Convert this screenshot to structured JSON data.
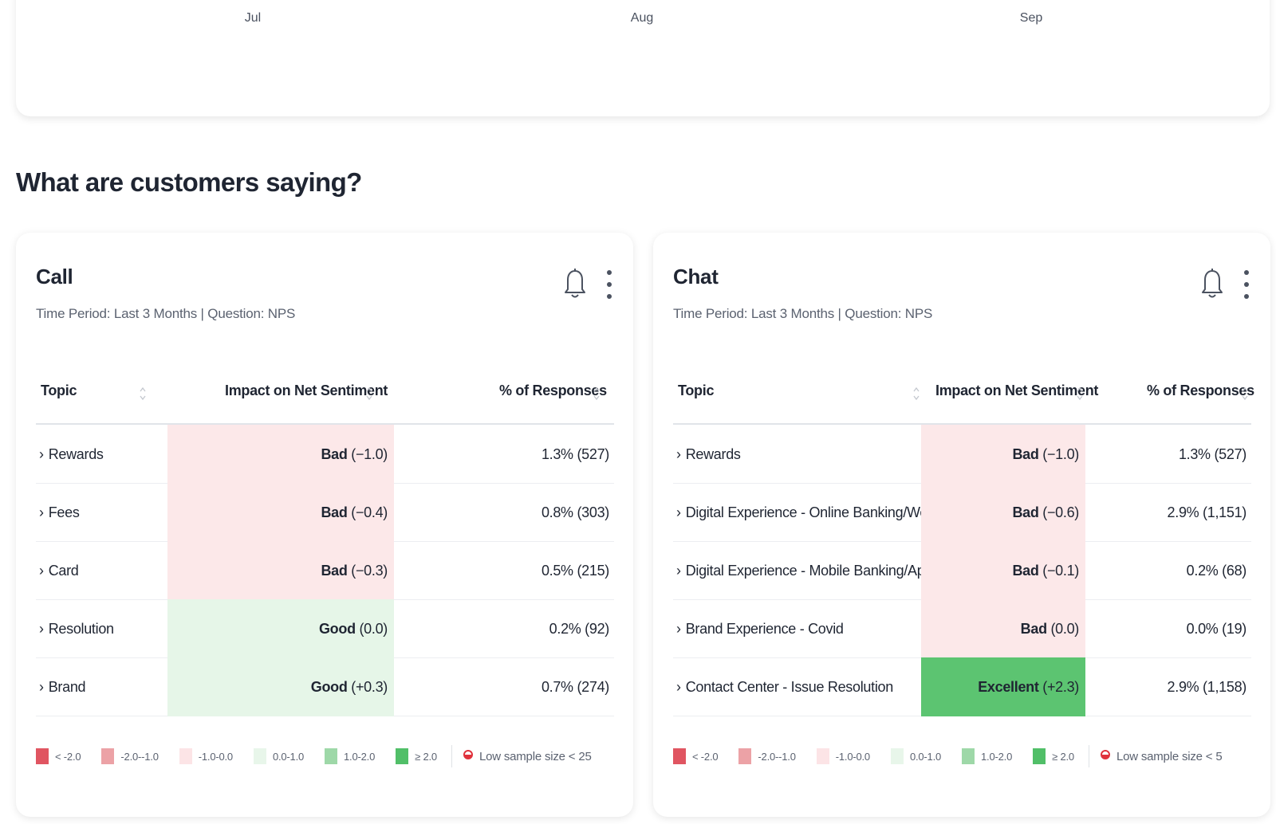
{
  "top_chart": {
    "months": [
      "Jul",
      "Aug",
      "Sep"
    ]
  },
  "section_title": "What are customers saying?",
  "colors": {
    "bad": "#fce8e9",
    "good": "#e6f6e8",
    "excellent": "#5cc471",
    "lt_neg2": "#e05561",
    "neg2_neg1": "#eca2a6",
    "neg1_0": "#fce4e6",
    "zero_1": "#e8f6ea",
    "one_2": "#9ed8a8",
    "gte2": "#51bf68",
    "low_sample": "#e0323c"
  },
  "cards": [
    {
      "title": "Call",
      "subtitle": "Time Period: Last 3 Months | Question: NPS",
      "columns": {
        "topic": "Topic",
        "impact": "Impact on Net Sentiment",
        "pct": "% of Responses"
      },
      "rows": [
        {
          "topic": "Rewards",
          "rating": "Bad",
          "score": "(−1.0)",
          "level": "bad",
          "pct": "1.3% (527)"
        },
        {
          "topic": "Fees",
          "rating": "Bad",
          "score": "(−0.4)",
          "level": "bad",
          "pct": "0.8% (303)"
        },
        {
          "topic": "Card",
          "rating": "Bad",
          "score": "(−0.3)",
          "level": "bad",
          "pct": "0.5% (215)"
        },
        {
          "topic": "Resolution",
          "rating": "Good",
          "score": "(0.0)",
          "level": "good",
          "pct": "0.2% (92)"
        },
        {
          "topic": "Brand",
          "rating": "Good",
          "score": "(+0.3)",
          "level": "good",
          "pct": "0.7% (274)"
        }
      ],
      "legend": [
        "< -2.0",
        "-2.0--1.0",
        "-1.0-0.0",
        "0.0-1.0",
        "1.0-2.0",
        "≥ 2.0"
      ],
      "low_sample": "Low sample size < 25"
    },
    {
      "title": "Chat",
      "subtitle": "Time Period: Last 3 Months | Question: NPS",
      "columns": {
        "topic": "Topic",
        "impact": "Impact on Net Sentiment",
        "pct": "% of Responses"
      },
      "rows": [
        {
          "topic": "Rewards",
          "rating": "Bad",
          "score": "(−1.0)",
          "level": "bad",
          "pct": "1.3% (527)"
        },
        {
          "topic": "Digital Experience - Online Banking/Website",
          "rating": "Bad",
          "score": "(−0.6)",
          "level": "bad",
          "pct": "2.9% (1,151)"
        },
        {
          "topic": "Digital Experience - Mobile Banking/App",
          "rating": "Bad",
          "score": "(−0.1)",
          "level": "bad",
          "pct": "0.2% (68)"
        },
        {
          "topic": "Brand Experience - Covid",
          "rating": "Bad",
          "score": "(0.0)",
          "level": "bad",
          "pct": "0.0% (19)"
        },
        {
          "topic": "Contact Center - Issue Resolution",
          "rating": "Excellent",
          "score": "(+2.3)",
          "level": "excellent",
          "pct": "2.9% (1,158)"
        }
      ],
      "legend": [
        "< -2.0",
        "-2.0--1.0",
        "-1.0-0.0",
        "0.0-1.0",
        "1.0-2.0",
        "≥ 2.0"
      ],
      "low_sample": "Low sample size < 5"
    }
  ]
}
